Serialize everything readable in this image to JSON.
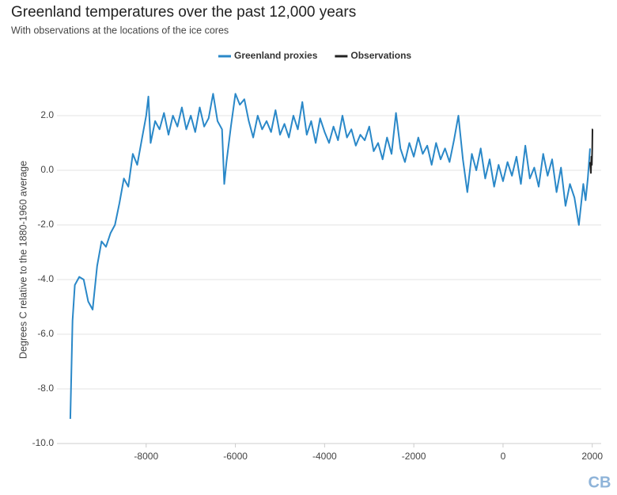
{
  "chart_data": {
    "type": "line",
    "title": "Greenland temperatures over the past 12,000 years",
    "subtitle": "With observations at the locations of the ice cores",
    "y_label": "Degrees C relative to the 1880-1960 average",
    "logo": "CB",
    "xlim": [
      -10000,
      2200
    ],
    "xticks": [
      -8000,
      -6000,
      -4000,
      -2000,
      0,
      2000
    ],
    "ylim": [
      -10,
      3
    ],
    "yticks": [
      {
        "value": -10,
        "label": "-10.0"
      },
      {
        "value": -8,
        "label": "-8.0"
      },
      {
        "value": -6,
        "label": "-6.0"
      },
      {
        "value": -4,
        "label": "-4.0"
      },
      {
        "value": -2,
        "label": "-2.0"
      },
      {
        "value": 0,
        "label": "0.0"
      },
      {
        "value": 2,
        "label": "2.0"
      }
    ],
    "grid": true,
    "legend": "top",
    "series": [
      {
        "name": "Greenland proxies",
        "color": "#2a88c8",
        "x": [
          -9700,
          -9650,
          -9600,
          -9500,
          -9400,
          -9300,
          -9200,
          -9100,
          -9000,
          -8900,
          -8800,
          -8700,
          -8600,
          -8500,
          -8400,
          -8300,
          -8200,
          -8100,
          -8000,
          -7950,
          -7900,
          -7800,
          -7700,
          -7600,
          -7500,
          -7400,
          -7300,
          -7200,
          -7100,
          -7000,
          -6900,
          -6800,
          -6700,
          -6600,
          -6500,
          -6400,
          -6300,
          -6250,
          -6200,
          -6100,
          -6000,
          -5900,
          -5800,
          -5700,
          -5600,
          -5500,
          -5400,
          -5300,
          -5200,
          -5100,
          -5000,
          -4900,
          -4800,
          -4700,
          -4600,
          -4500,
          -4400,
          -4300,
          -4200,
          -4100,
          -4000,
          -3900,
          -3800,
          -3700,
          -3600,
          -3500,
          -3400,
          -3300,
          -3200,
          -3100,
          -3000,
          -2900,
          -2800,
          -2700,
          -2600,
          -2500,
          -2400,
          -2300,
          -2200,
          -2100,
          -2000,
          -1900,
          -1800,
          -1700,
          -1600,
          -1500,
          -1400,
          -1300,
          -1200,
          -1100,
          -1000,
          -900,
          -800,
          -700,
          -600,
          -500,
          -400,
          -300,
          -200,
          -100,
          0,
          100,
          200,
          300,
          400,
          500,
          600,
          700,
          800,
          900,
          1000,
          1100,
          1200,
          1300,
          1400,
          1500,
          1600,
          1700,
          1800,
          1850,
          1900,
          1950
        ],
        "values": [
          -9.1,
          -5.5,
          -4.2,
          -3.9,
          -4.0,
          -4.8,
          -5.1,
          -3.5,
          -2.6,
          -2.8,
          -2.3,
          -2.0,
          -1.2,
          -0.3,
          -0.6,
          0.6,
          0.2,
          1.1,
          2.0,
          2.7,
          1.0,
          1.8,
          1.5,
          2.1,
          1.3,
          2.0,
          1.6,
          2.3,
          1.5,
          2.0,
          1.4,
          2.3,
          1.6,
          1.9,
          2.8,
          1.8,
          1.5,
          -0.5,
          0.3,
          1.6,
          2.8,
          2.4,
          2.6,
          1.8,
          1.2,
          2.0,
          1.5,
          1.8,
          1.4,
          2.2,
          1.3,
          1.7,
          1.2,
          2.0,
          1.5,
          2.5,
          1.3,
          1.8,
          1.0,
          1.9,
          1.4,
          1.0,
          1.6,
          1.1,
          2.0,
          1.2,
          1.5,
          0.9,
          1.3,
          1.1,
          1.6,
          0.7,
          1.0,
          0.4,
          1.2,
          0.6,
          2.1,
          0.8,
          0.3,
          1.0,
          0.5,
          1.2,
          0.6,
          0.9,
          0.2,
          1.0,
          0.4,
          0.8,
          0.3,
          1.1,
          2.0,
          0.4,
          -0.8,
          0.6,
          0.0,
          0.8,
          -0.3,
          0.4,
          -0.6,
          0.2,
          -0.4,
          0.3,
          -0.2,
          0.5,
          -0.5,
          0.9,
          -0.3,
          0.1,
          -0.6,
          0.6,
          -0.2,
          0.4,
          -0.8,
          0.1,
          -1.3,
          -0.5,
          -1.0,
          -2.0,
          -0.5,
          -1.1,
          -0.3,
          0.8
        ]
      },
      {
        "name": "Observations",
        "color": "#222222",
        "x": [
          1950,
          1970,
          1980,
          1990,
          2000,
          2005,
          2010
        ],
        "values": [
          0.3,
          -0.1,
          0.5,
          0.2,
          0.8,
          1.5,
          1.5
        ]
      }
    ]
  }
}
